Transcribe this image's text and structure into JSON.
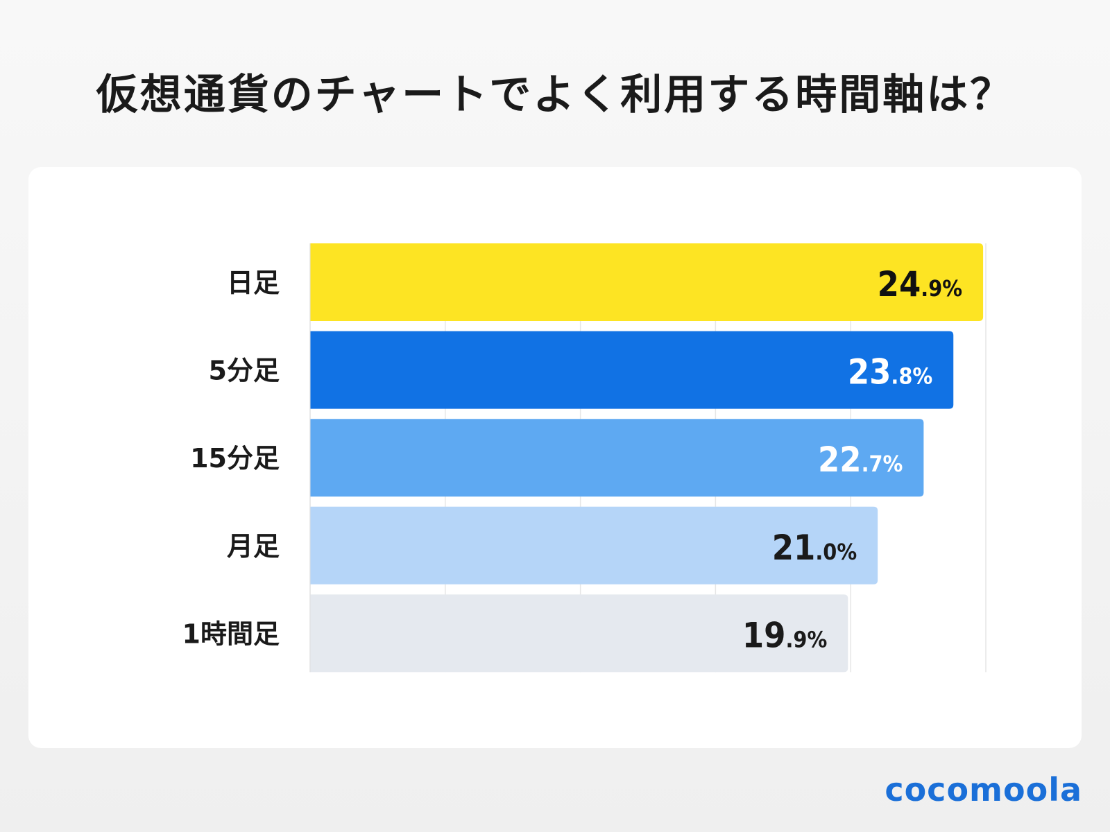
{
  "title": "仮想通貨のチャートでよく利用する時間軸は？",
  "logo": "cocomoola",
  "chart_data": {
    "type": "bar",
    "orientation": "horizontal",
    "title": "仮想通貨のチャートでよく利用する時間軸は？",
    "categories": [
      "日足",
      "5分足",
      "15分足",
      "月足",
      "1時間足"
    ],
    "values": [
      24.9,
      23.8,
      22.7,
      21.0,
      19.9
    ],
    "value_labels": [
      {
        "int": "24",
        "dec": ".9%"
      },
      {
        "int": "23",
        "dec": ".8%"
      },
      {
        "int": "22",
        "dec": ".7%"
      },
      {
        "int": "21",
        "dec": ".0%"
      },
      {
        "int": "19",
        "dec": ".9%"
      }
    ],
    "unit": "%",
    "xlim": [
      0,
      25
    ],
    "grid": true,
    "colors": [
      "#fde423",
      "#1172e4",
      "#5ea9f2",
      "#b5d5f8",
      "#e5e9ef"
    ],
    "label_colors": [
      "#111111",
      "#ffffff",
      "#ffffff",
      "#1a1a1a",
      "#1a1a1a"
    ]
  }
}
